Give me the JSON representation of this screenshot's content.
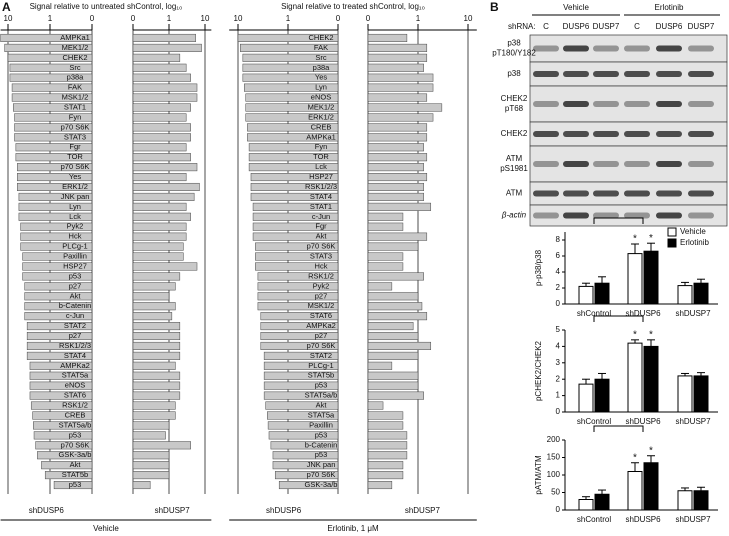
{
  "panel_labels": [
    "A",
    "B"
  ],
  "blot": {
    "shrna_label": "shRNA:",
    "treatments": [
      "Vehicle",
      "Erlotinib"
    ],
    "lanes": [
      "C",
      "DUSP6",
      "DUSP7",
      "C",
      "DUSP6",
      "DUSP7"
    ],
    "rows": [
      [
        "p38",
        "pT180/Y182"
      ],
      [
        "p38"
      ],
      [
        "CHEK2",
        "pT68"
      ],
      [
        "CHEK2"
      ],
      [
        "ATM",
        "pS1981"
      ],
      [
        "ATM"
      ],
      [
        "β-actin"
      ]
    ]
  },
  "chart_data": [
    {
      "type": "butterfly",
      "title": "Signal relative to untreated shControl, log₁₀",
      "xscale": "log",
      "xlim": [
        0.1,
        15
      ],
      "xticks": [
        {
          "value": 0.1,
          "label": "0"
        },
        1,
        10
      ],
      "group_label": "Vehicle",
      "categories": [
        "AMPKa1",
        "MEK1/2",
        "CHEK2",
        "Src",
        "p38a",
        "FAK",
        "MSK1/2",
        "STAT1",
        "Fyn",
        "p70 S6K",
        "STAT3",
        "Fgr",
        "TOR",
        "p70 S6K",
        "Yes",
        "ERK1/2",
        "JNK pan",
        "Lyn",
        "Lck",
        "Pyk2",
        "Hck",
        "PLCg-1",
        "Paxillin",
        "HSP27",
        "p53",
        "p27",
        "Akt",
        "b-Catenin",
        "c-Jun",
        "STAT2",
        "p27",
        "RSK1/2/3",
        "STAT4",
        "AMPKa2",
        "STAT5a",
        "eNOS",
        "STAT6",
        "RSK1/2",
        "CREB",
        "STAT5a/b",
        "p53",
        "p70 S6K",
        "GSK-3a/b",
        "Akt",
        "STAT5b",
        "p53"
      ],
      "series": [
        {
          "name": "shDUSP6",
          "color": "#c8c8c8",
          "values": [
            15,
            12,
            10,
            9,
            9,
            8,
            8,
            7.5,
            7,
            7,
            7,
            6.5,
            6.5,
            6,
            6,
            6,
            5.5,
            5.5,
            5.5,
            5,
            5,
            5,
            4.5,
            4.5,
            4.5,
            4,
            4,
            4,
            4,
            3.5,
            3.5,
            3.5,
            3.5,
            3,
            3,
            3,
            3,
            2.8,
            2.6,
            2.5,
            2.4,
            2.2,
            2,
            1.6,
            1.3,
            0.8
          ]
        },
        {
          "name": "shDUSP7",
          "color": "#c8c8c8",
          "values": [
            5.5,
            8,
            2,
            3,
            4,
            6,
            6,
            4,
            3,
            4,
            4,
            3,
            4,
            6,
            3,
            7,
            5,
            3,
            4,
            3,
            3,
            2.5,
            2.5,
            6,
            2,
            1.5,
            1,
            1.5,
            1.2,
            2,
            2,
            2,
            2,
            1.5,
            2,
            2,
            2,
            1.5,
            1.5,
            1,
            0.8,
            4,
            1,
            1,
            1,
            0.3
          ]
        }
      ]
    },
    {
      "type": "butterfly",
      "title": "Signal relative to treated shControl, log₁₀",
      "xscale": "log",
      "xlim": [
        0.1,
        15
      ],
      "xticks": [
        {
          "value": 0.1,
          "label": "0"
        },
        1,
        10
      ],
      "group_label": "Erlotinib, 1 μM",
      "categories": [
        "CHEK2",
        "FAK",
        "Src",
        "p38a",
        "Yes",
        "Lyn",
        "eNOS",
        "MEK1/2",
        "ERK1/2",
        "CREB",
        "AMPKa1",
        "Fyn",
        "TOR",
        "Lck",
        "HSP27",
        "RSK1/2/3",
        "STAT4",
        "STAT1",
        "c-Jun",
        "Fgr",
        "Akt",
        "p70 S6K",
        "STAT3",
        "Hck",
        "RSK1/2",
        "Pyk2",
        "p27",
        "MSK1/2",
        "STAT6",
        "AMPKa2",
        "p27",
        "p70 S6K",
        "STAT2",
        "PLCg-1",
        "STAT5b",
        "p53",
        "STAT5a/b",
        "Akt",
        "STAT5a",
        "Paxillin",
        "p53",
        "b-Catenin",
        "p53",
        "JNK pan",
        "p70 S6K",
        "GSK-3a/b"
      ],
      "series": [
        {
          "name": "shDUSP6",
          "color": "#c8c8c8",
          "values": [
            10,
            9,
            8,
            8,
            8,
            7.5,
            7,
            7,
            7,
            6.5,
            6.5,
            6,
            6,
            6,
            5.5,
            5.5,
            5.5,
            5,
            5,
            5,
            5,
            4.5,
            4.5,
            4.5,
            4,
            4,
            4,
            4,
            3.5,
            3.5,
            3.5,
            3.5,
            3,
            3,
            3,
            3,
            3,
            2.8,
            2.6,
            2.5,
            2.4,
            2.2,
            2,
            2,
            1.8,
            1.5
          ]
        },
        {
          "name": "shDUSP7",
          "color": "#c8c8c8",
          "values": [
            0.6,
            1.5,
            1.5,
            1.3,
            2,
            2,
            1.5,
            3,
            2,
            1.5,
            1.5,
            1.3,
            1.5,
            1.3,
            1.5,
            1.3,
            1.3,
            1.8,
            0.5,
            0.5,
            1.5,
            1,
            0.5,
            0.5,
            1.3,
            0.3,
            1,
            1.2,
            1.5,
            0.8,
            1,
            1.8,
            1,
            0.3,
            1,
            1,
            1.3,
            0.2,
            0.5,
            0.5,
            0.6,
            0.6,
            0.6,
            0.5,
            0.5,
            0.3
          ]
        }
      ]
    },
    {
      "type": "bar",
      "ylabel": "p-p38/p38",
      "categories": [
        "shControl",
        "shDUSP6",
        "shDUSP7"
      ],
      "ylim": [
        0,
        9
      ],
      "yticks": [
        0,
        2,
        4,
        6,
        8
      ],
      "legend": "upper right",
      "annotations": [
        "*",
        "*"
      ],
      "series": [
        {
          "name": "Vehicle",
          "color": "#ffffff",
          "values": [
            2.2,
            6.3,
            2.3
          ],
          "errors": [
            0.4,
            1.2,
            0.4
          ]
        },
        {
          "name": "Erlotinib",
          "color": "#000000",
          "values": [
            2.6,
            6.6,
            2.6
          ],
          "errors": [
            0.8,
            1.0,
            0.5
          ]
        }
      ]
    },
    {
      "type": "bar",
      "ylabel": "pCHEK2/CHEK2",
      "categories": [
        "shControl",
        "shDUSP6",
        "shDUSP7"
      ],
      "ylim": [
        0,
        5
      ],
      "yticks": [
        0,
        1,
        2,
        3,
        4,
        5
      ],
      "annotations": [
        "*",
        "*"
      ],
      "series": [
        {
          "color": "#ffffff",
          "values": [
            1.7,
            4.2,
            2.2
          ],
          "errors": [
            0.3,
            0.2,
            0.15
          ]
        },
        {
          "color": "#000000",
          "values": [
            2.0,
            4.0,
            2.2
          ],
          "errors": [
            0.35,
            0.4,
            0.2
          ]
        }
      ]
    },
    {
      "type": "bar",
      "ylabel": "pATM/ATM",
      "categories": [
        "shControl",
        "shDUSP6",
        "shDUSP7"
      ],
      "ylim": [
        0,
        200
      ],
      "yticks": [
        0,
        50,
        100,
        150,
        200
      ],
      "annotations": [
        "*",
        "*"
      ],
      "series": [
        {
          "color": "#ffffff",
          "values": [
            30,
            110,
            55
          ],
          "errors": [
            8,
            25,
            8
          ]
        },
        {
          "color": "#000000",
          "values": [
            45,
            135,
            55
          ],
          "errors": [
            12,
            20,
            10
          ]
        }
      ]
    }
  ]
}
